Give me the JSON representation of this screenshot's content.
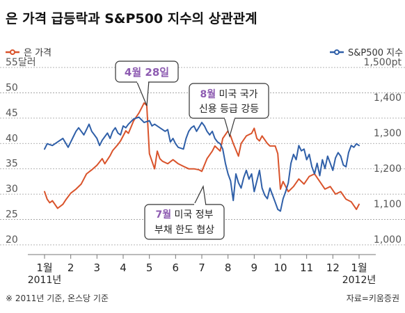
{
  "title": "은 가격 급등락과 S&P500 지수의 상관관계",
  "legend": {
    "left": "은 가격",
    "right": "S&P500 지수"
  },
  "axes": {
    "left_unit": "달러",
    "right_unit": "pt",
    "year_start": "2011년",
    "year_end": "2012년"
  },
  "annotations": {
    "peak_date": "4월 28일",
    "aug_month": "8월",
    "aug_line1_rest": " 미국 국가",
    "aug_line2": "신용 등급 강등",
    "jul_month": "7월",
    "jul_line1_rest": " 미국 정부",
    "jul_line2": "부채 한도 협상"
  },
  "footnote": "※ 2011년 기준, 온스당 기준",
  "source": "자료=키움증권",
  "colors": {
    "silver": "#d9532b",
    "sp500": "#2f5fa8",
    "grid": "#9a9a9a",
    "callout_em": "#8d5bb1"
  },
  "chart_data": {
    "type": "line",
    "title": "은 가격 급등락과 S&P500 지수의 상관관계",
    "x_labels": [
      "1월",
      "2",
      "3",
      "4",
      "5",
      "6",
      "7",
      "8",
      "9",
      "10",
      "11",
      "12",
      "1월"
    ],
    "left_axis": {
      "ticks": [
        20,
        25,
        30,
        35,
        40,
        45,
        50,
        55
      ],
      "ylim": [
        20,
        55
      ],
      "unit": "달러"
    },
    "right_axis": {
      "ticks": [
        1000,
        1100,
        1200,
        1300,
        1400,
        1500
      ],
      "ylim": [
        1000,
        1500
      ],
      "unit": "pt"
    },
    "grid": true,
    "legend_position": "top",
    "series": [
      {
        "name": "은 가격",
        "axis": "left",
        "color": "#d9532b",
        "x": [
          1.0,
          1.1,
          1.2,
          1.3,
          1.5,
          1.7,
          1.8,
          2.0,
          2.2,
          2.4,
          2.6,
          2.8,
          3.0,
          3.2,
          3.3,
          3.5,
          3.6,
          3.8,
          3.9,
          4.1,
          4.2,
          4.4,
          4.6,
          4.7,
          4.8,
          4.9,
          5.0,
          5.1,
          5.2,
          5.3,
          5.4,
          5.5,
          5.7,
          5.9,
          6.1,
          6.3,
          6.5,
          6.7,
          6.9,
          7.0,
          7.2,
          7.4,
          7.5,
          7.7,
          7.8,
          8.0,
          8.1,
          8.2,
          8.4,
          8.5,
          8.7,
          8.9,
          9.0,
          9.1,
          9.2,
          9.3,
          9.5,
          9.6,
          9.8,
          9.9,
          10.0,
          10.1,
          10.3,
          10.5,
          10.7,
          10.9,
          11.1,
          11.3,
          11.5,
          11.7,
          11.9,
          12.1,
          12.3,
          12.5,
          12.7,
          12.9,
          13.0
        ],
        "values": [
          30.5,
          29.0,
          28.3,
          28.7,
          27.2,
          28.0,
          28.8,
          30.2,
          31.0,
          32.0,
          34.0,
          34.8,
          35.7,
          37.0,
          36.0,
          37.6,
          38.6,
          39.8,
          40.5,
          42.5,
          42.0,
          44.5,
          46.0,
          47.0,
          48.0,
          47.5,
          38.0,
          36.5,
          35.0,
          38.5,
          37.0,
          36.5,
          36.0,
          36.8,
          36.0,
          35.5,
          35.0,
          35.0,
          34.8,
          34.5,
          37.0,
          38.5,
          39.5,
          38.5,
          41.0,
          42.5,
          41.5,
          40.0,
          37.5,
          40.0,
          41.5,
          42.0,
          43.0,
          41.0,
          40.5,
          41.5,
          40.0,
          39.5,
          39.5,
          38.0,
          31.0,
          32.5,
          30.5,
          31.5,
          33.0,
          32.0,
          33.5,
          34.0,
          32.5,
          31.0,
          31.5,
          30.0,
          30.5,
          29.0,
          28.5,
          27.0,
          28.0
        ]
      },
      {
        "name": "S&P500 지수",
        "axis": "right",
        "color": "#2f5fa8",
        "x": [
          1.0,
          1.1,
          1.3,
          1.5,
          1.7,
          1.9,
          2.0,
          2.1,
          2.2,
          2.3,
          2.5,
          2.6,
          2.7,
          2.8,
          2.9,
          3.0,
          3.1,
          3.2,
          3.3,
          3.4,
          3.5,
          3.6,
          3.7,
          3.8,
          3.9,
          4.0,
          4.1,
          4.2,
          4.4,
          4.6,
          4.8,
          5.0,
          5.1,
          5.2,
          5.4,
          5.6,
          5.7,
          5.8,
          5.9,
          6.0,
          6.1,
          6.3,
          6.4,
          6.5,
          6.6,
          6.7,
          6.8,
          7.0,
          7.1,
          7.2,
          7.3,
          7.4,
          7.5,
          7.6,
          7.7,
          7.8,
          7.9,
          8.0,
          8.1,
          8.2,
          8.3,
          8.4,
          8.5,
          8.6,
          8.7,
          8.8,
          8.9,
          9.0,
          9.1,
          9.2,
          9.3,
          9.4,
          9.5,
          9.6,
          9.7,
          9.8,
          9.9,
          10.0,
          10.1,
          10.2,
          10.3,
          10.4,
          10.5,
          10.6,
          10.7,
          10.8,
          10.9,
          11.0,
          11.1,
          11.2,
          11.3,
          11.4,
          11.5,
          11.6,
          11.7,
          11.8,
          11.9,
          12.0,
          12.1,
          12.2,
          12.3,
          12.4,
          12.5,
          12.6,
          12.7,
          12.8,
          12.9,
          13.0
        ],
        "values": [
          1270,
          1285,
          1280,
          1290,
          1300,
          1275,
          1290,
          1305,
          1320,
          1330,
          1310,
          1325,
          1340,
          1320,
          1310,
          1300,
          1280,
          1295,
          1305,
          1315,
          1300,
          1320,
          1330,
          1315,
          1310,
          1335,
          1330,
          1340,
          1355,
          1360,
          1345,
          1350,
          1335,
          1340,
          1330,
          1320,
          1325,
          1290,
          1300,
          1285,
          1275,
          1270,
          1300,
          1320,
          1330,
          1335,
          1320,
          1345,
          1335,
          1320,
          1310,
          1320,
          1300,
          1290,
          1285,
          1270,
          1230,
          1200,
          1180,
          1125,
          1200,
          1175,
          1160,
          1190,
          1210,
          1185,
          1200,
          1150,
          1180,
          1210,
          1160,
          1140,
          1130,
          1160,
          1140,
          1120,
          1100,
          1095,
          1130,
          1150,
          1175,
          1230,
          1255,
          1240,
          1280,
          1265,
          1270,
          1240,
          1255,
          1220,
          1200,
          1230,
          1195,
          1240,
          1215,
          1250,
          1230,
          1210,
          1245,
          1260,
          1250,
          1225,
          1220,
          1260,
          1280,
          1275,
          1285,
          1280
        ]
      }
    ]
  }
}
